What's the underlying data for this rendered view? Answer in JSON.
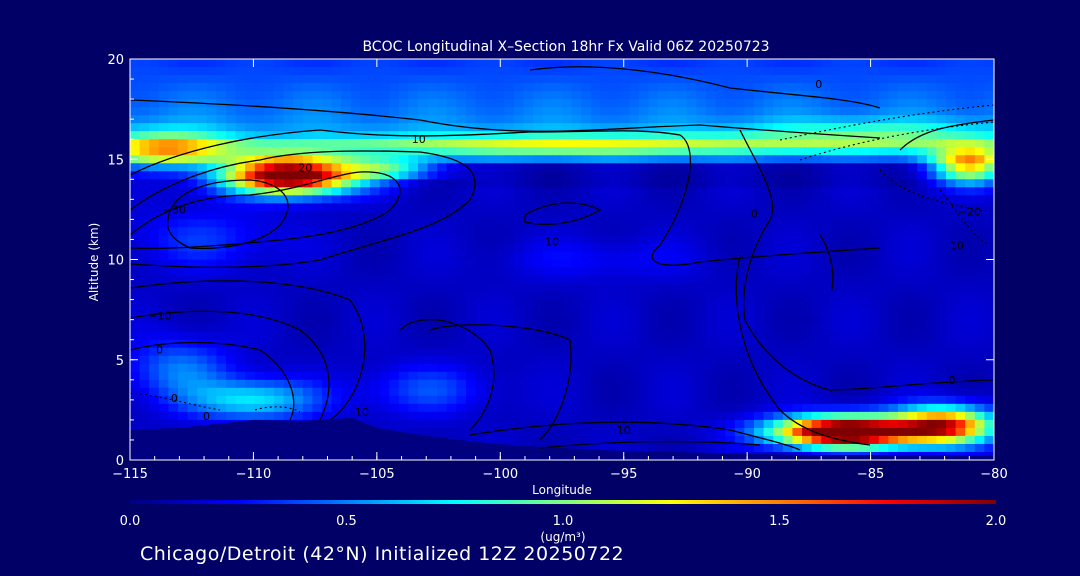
{
  "chart_data": {
    "type": "heatmap",
    "title": "BCOC Longitudinal X–Section 18hr  Fx Valid 06Z 20250723",
    "xlabel": "Longitude",
    "ylabel": "Altitude (km)",
    "xlim": [
      -115,
      -80
    ],
    "ylim": [
      0,
      20
    ],
    "x_ticks": [
      -115,
      -110,
      -105,
      -100,
      -95,
      -90,
      -85,
      -80
    ],
    "x_tick_labels": [
      "−115",
      "−110",
      "−105",
      "−100",
      "−95",
      "−90",
      "−85",
      "−80"
    ],
    "y_ticks": [
      0,
      5,
      10,
      15,
      20
    ],
    "y_tick_labels": [
      "0",
      "5",
      "10",
      "15",
      "20"
    ],
    "colorbar": {
      "min": 0.0,
      "max": 2.0,
      "ticks": [
        0.0,
        0.5,
        1.0,
        1.5,
        2.0
      ],
      "tick_labels": [
        "0.0",
        "0.5",
        "1.0",
        "1.5",
        "2.0"
      ],
      "unit_label": "(ug/m³)",
      "colors": [
        "#00007f",
        "#0000ff",
        "#0080ff",
        "#00ffff",
        "#80ff80",
        "#ffff00",
        "#ff8000",
        "#ff0000",
        "#7f0000"
      ]
    },
    "contour_labels": [
      {
        "text": "0",
        "x": -87.1,
        "y": 18.55
      },
      {
        "text": "10",
        "x": -103.3,
        "y": 15.8
      },
      {
        "text": "20",
        "x": -107.9,
        "y": 14.4
      },
      {
        "text": "−30",
        "x": -113.2,
        "y": 12.3
      },
      {
        "text": "10",
        "x": -97.9,
        "y": 10.7
      },
      {
        "text": "0",
        "x": -89.7,
        "y": 12.1
      },
      {
        "text": "−20",
        "x": -81.0,
        "y": 12.2
      },
      {
        "text": "10",
        "x": -81.5,
        "y": 10.5
      },
      {
        "text": "−10",
        "x": -113.8,
        "y": 7.0
      },
      {
        "text": "0",
        "x": -113.8,
        "y": 5.3
      },
      {
        "text": "0",
        "x": -81.7,
        "y": 3.8
      },
      {
        "text": "0",
        "x": -113.2,
        "y": 2.9
      },
      {
        "text": "0",
        "x": -111.9,
        "y": 2.0
      },
      {
        "text": "10",
        "x": -105.6,
        "y": 2.2
      },
      {
        "text": "10",
        "x": -95.0,
        "y": 1.3
      }
    ],
    "plumes": [
      {
        "lon": -108.5,
        "alt": 14.2,
        "slon": 2.6,
        "salt": 0.9,
        "amp": 2.2
      },
      {
        "lon": -104.5,
        "alt": 14.5,
        "slon": 2.0,
        "salt": 0.5,
        "amp": 0.7
      },
      {
        "lon": -113.5,
        "alt": 15.4,
        "slon": 2.5,
        "salt": 0.9,
        "amp": 0.9
      },
      {
        "lon": -97.0,
        "alt": 15.7,
        "slon": 9.0,
        "salt": 0.6,
        "amp": 0.55
      },
      {
        "lon": -85.0,
        "alt": 16.2,
        "slon": 5.0,
        "salt": 0.7,
        "amp": 0.4
      },
      {
        "lon": -81.0,
        "alt": 14.7,
        "slon": 1.5,
        "salt": 0.9,
        "amp": 1.2
      },
      {
        "lon": -86.0,
        "alt": 1.4,
        "slon": 2.8,
        "salt": 0.75,
        "amp": 2.4
      },
      {
        "lon": -82.0,
        "alt": 1.7,
        "slon": 2.0,
        "salt": 0.9,
        "amp": 1.6
      },
      {
        "lon": -110.0,
        "alt": 3.0,
        "slon": 2.5,
        "salt": 1.0,
        "amp": 0.6
      },
      {
        "lon": -113.0,
        "alt": 4.5,
        "slon": 2.0,
        "salt": 1.5,
        "amp": 0.35
      },
      {
        "lon": -103.0,
        "alt": 3.5,
        "slon": 2.5,
        "salt": 1.2,
        "amp": 0.25
      },
      {
        "lon": -112.0,
        "alt": 11.0,
        "slon": 3.0,
        "salt": 1.5,
        "amp": 0.2
      },
      {
        "lon": -96.0,
        "alt": 10.0,
        "slon": 4.0,
        "salt": 1.0,
        "amp": 0.12
      }
    ]
  },
  "footer": {
    "text": "Chicago/Detroit (42°N) Initialized 12Z 20250722"
  }
}
